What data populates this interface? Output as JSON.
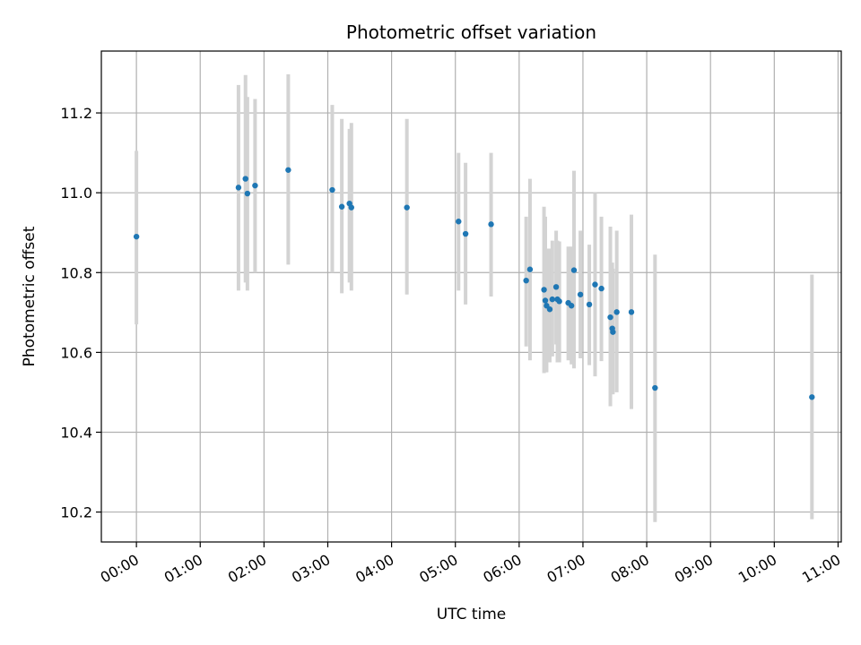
{
  "chart_data": {
    "type": "scatter",
    "title": "Photometric offset variation",
    "xlabel": "UTC time",
    "ylabel": "Photometric offset",
    "x_unit": "hours UTC",
    "xlim": [
      -0.55,
      11.05
    ],
    "ylim": [
      10.125,
      11.355
    ],
    "x_ticks": [
      {
        "value": 0,
        "label": "00:00"
      },
      {
        "value": 1,
        "label": "01:00"
      },
      {
        "value": 2,
        "label": "02:00"
      },
      {
        "value": 3,
        "label": "03:00"
      },
      {
        "value": 4,
        "label": "04:00"
      },
      {
        "value": 5,
        "label": "05:00"
      },
      {
        "value": 6,
        "label": "06:00"
      },
      {
        "value": 7,
        "label": "07:00"
      },
      {
        "value": 8,
        "label": "08:00"
      },
      {
        "value": 9,
        "label": "09:00"
      },
      {
        "value": 10,
        "label": "10:00"
      },
      {
        "value": 11,
        "label": "11:00"
      }
    ],
    "y_ticks": [
      {
        "value": 10.2,
        "label": "10.2"
      },
      {
        "value": 10.4,
        "label": "10.4"
      },
      {
        "value": 10.6,
        "label": "10.6"
      },
      {
        "value": 10.8,
        "label": "10.8"
      },
      {
        "value": 11.0,
        "label": "11.0"
      },
      {
        "value": 11.2,
        "label": "11.2"
      }
    ],
    "grid": true,
    "marker_color": "#1f77b4",
    "errorbar_color": "#d3d3d3",
    "points": [
      {
        "x": 0.0,
        "y": 10.89,
        "lo": 10.67,
        "hi": 11.105
      },
      {
        "x": 1.6,
        "y": 11.013,
        "lo": 10.755,
        "hi": 11.27
      },
      {
        "x": 1.71,
        "y": 11.035,
        "lo": 10.775,
        "hi": 11.295
      },
      {
        "x": 1.74,
        "y": 10.998,
        "lo": 10.755,
        "hi": 11.24
      },
      {
        "x": 1.86,
        "y": 11.018,
        "lo": 10.8,
        "hi": 11.235
      },
      {
        "x": 2.38,
        "y": 11.057,
        "lo": 10.82,
        "hi": 11.297
      },
      {
        "x": 3.07,
        "y": 11.007,
        "lo": 10.8,
        "hi": 11.22
      },
      {
        "x": 3.22,
        "y": 10.965,
        "lo": 10.748,
        "hi": 11.185
      },
      {
        "x": 3.34,
        "y": 10.973,
        "lo": 10.775,
        "hi": 11.16
      },
      {
        "x": 3.37,
        "y": 10.963,
        "lo": 10.755,
        "hi": 11.175
      },
      {
        "x": 4.24,
        "y": 10.963,
        "lo": 10.745,
        "hi": 11.185
      },
      {
        "x": 5.05,
        "y": 10.928,
        "lo": 10.755,
        "hi": 11.1
      },
      {
        "x": 5.16,
        "y": 10.897,
        "lo": 10.72,
        "hi": 11.075
      },
      {
        "x": 5.56,
        "y": 10.921,
        "lo": 10.74,
        "hi": 11.1
      },
      {
        "x": 6.11,
        "y": 10.78,
        "lo": 10.615,
        "hi": 10.94
      },
      {
        "x": 6.17,
        "y": 10.808,
        "lo": 10.58,
        "hi": 11.035
      },
      {
        "x": 6.39,
        "y": 10.757,
        "lo": 10.548,
        "hi": 10.965
      },
      {
        "x": 6.41,
        "y": 10.73,
        "lo": 10.555,
        "hi": 10.94
      },
      {
        "x": 6.43,
        "y": 10.717,
        "lo": 10.55,
        "hi": 10.86
      },
      {
        "x": 6.48,
        "y": 10.708,
        "lo": 10.575,
        "hi": 10.86
      },
      {
        "x": 6.52,
        "y": 10.733,
        "lo": 10.59,
        "hi": 10.88
      },
      {
        "x": 6.58,
        "y": 10.764,
        "lo": 10.62,
        "hi": 10.905
      },
      {
        "x": 6.6,
        "y": 10.733,
        "lo": 10.575,
        "hi": 10.88
      },
      {
        "x": 6.63,
        "y": 10.728,
        "lo": 10.575,
        "hi": 10.878
      },
      {
        "x": 6.77,
        "y": 10.724,
        "lo": 10.58,
        "hi": 10.865
      },
      {
        "x": 6.82,
        "y": 10.717,
        "lo": 10.57,
        "hi": 10.865
      },
      {
        "x": 6.86,
        "y": 10.806,
        "lo": 10.56,
        "hi": 11.055
      },
      {
        "x": 6.96,
        "y": 10.745,
        "lo": 10.585,
        "hi": 10.905
      },
      {
        "x": 7.1,
        "y": 10.72,
        "lo": 10.568,
        "hi": 10.87
      },
      {
        "x": 7.19,
        "y": 10.77,
        "lo": 10.54,
        "hi": 11.0
      },
      {
        "x": 7.29,
        "y": 10.76,
        "lo": 10.578,
        "hi": 10.94
      },
      {
        "x": 7.43,
        "y": 10.688,
        "lo": 10.465,
        "hi": 10.915
      },
      {
        "x": 7.46,
        "y": 10.66,
        "lo": 10.495,
        "hi": 10.825
      },
      {
        "x": 7.47,
        "y": 10.651,
        "lo": 10.495,
        "hi": 10.81
      },
      {
        "x": 7.53,
        "y": 10.701,
        "lo": 10.5,
        "hi": 10.905
      },
      {
        "x": 7.76,
        "y": 10.701,
        "lo": 10.458,
        "hi": 10.945
      },
      {
        "x": 8.13,
        "y": 10.511,
        "lo": 10.175,
        "hi": 10.845
      },
      {
        "x": 10.59,
        "y": 10.488,
        "lo": 10.182,
        "hi": 10.795
      }
    ]
  }
}
